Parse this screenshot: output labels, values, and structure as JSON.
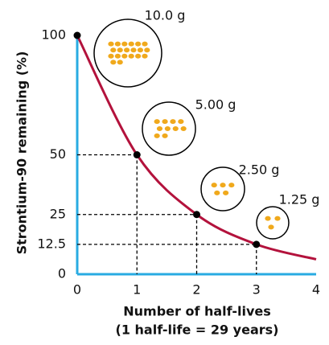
{
  "chart_data": {
    "type": "line",
    "ylabel": "Strontium-90 remaining (%)",
    "xlabel": [
      "Number of half-lives",
      "(1 half-life = 29 years)"
    ],
    "x": [
      0,
      1,
      2,
      3,
      4
    ],
    "series": [
      {
        "name": "Strontium-90",
        "color": "#b3123c",
        "values": [
          100,
          50,
          25,
          12.5,
          6.25
        ]
      }
    ],
    "xlim": [
      0,
      4
    ],
    "xticks": [
      0,
      1,
      2,
      3,
      4
    ],
    "ylim": [
      0,
      100
    ],
    "yticks": [
      0,
      12.5,
      25,
      50,
      100
    ],
    "axis_color": "#29abe2",
    "annotations": [
      {
        "x": 0,
        "text": "10.0 g"
      },
      {
        "x": 1,
        "text": "5.00 g"
      },
      {
        "x": 2,
        "text": "2.50 g"
      },
      {
        "x": 3,
        "text": "1.25 g"
      }
    ]
  }
}
